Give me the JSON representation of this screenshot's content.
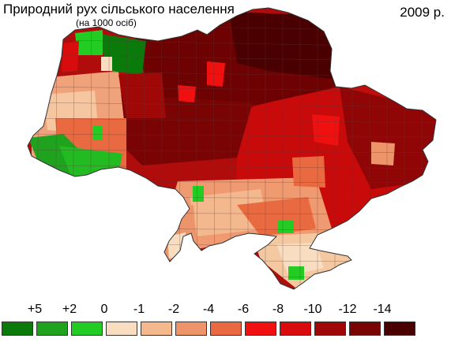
{
  "header": {
    "title": "Природний рух сільського населення",
    "subtitle": "(на 1000 осіб)",
    "year": "2009 р."
  },
  "legend": {
    "labels": [
      "+5",
      "+2",
      "0",
      "-1",
      "-2",
      "-4",
      "-6",
      "-8",
      "-10",
      "-12",
      "-14"
    ],
    "colors": [
      "#0a7a0a",
      "#1fa31f",
      "#22cc22",
      "#f8ddc0",
      "#f3b88c",
      "#ee946a",
      "#e96a40",
      "#f01010",
      "#d80c0c",
      "#a00808",
      "#780404",
      "#4a0000"
    ]
  }
}
